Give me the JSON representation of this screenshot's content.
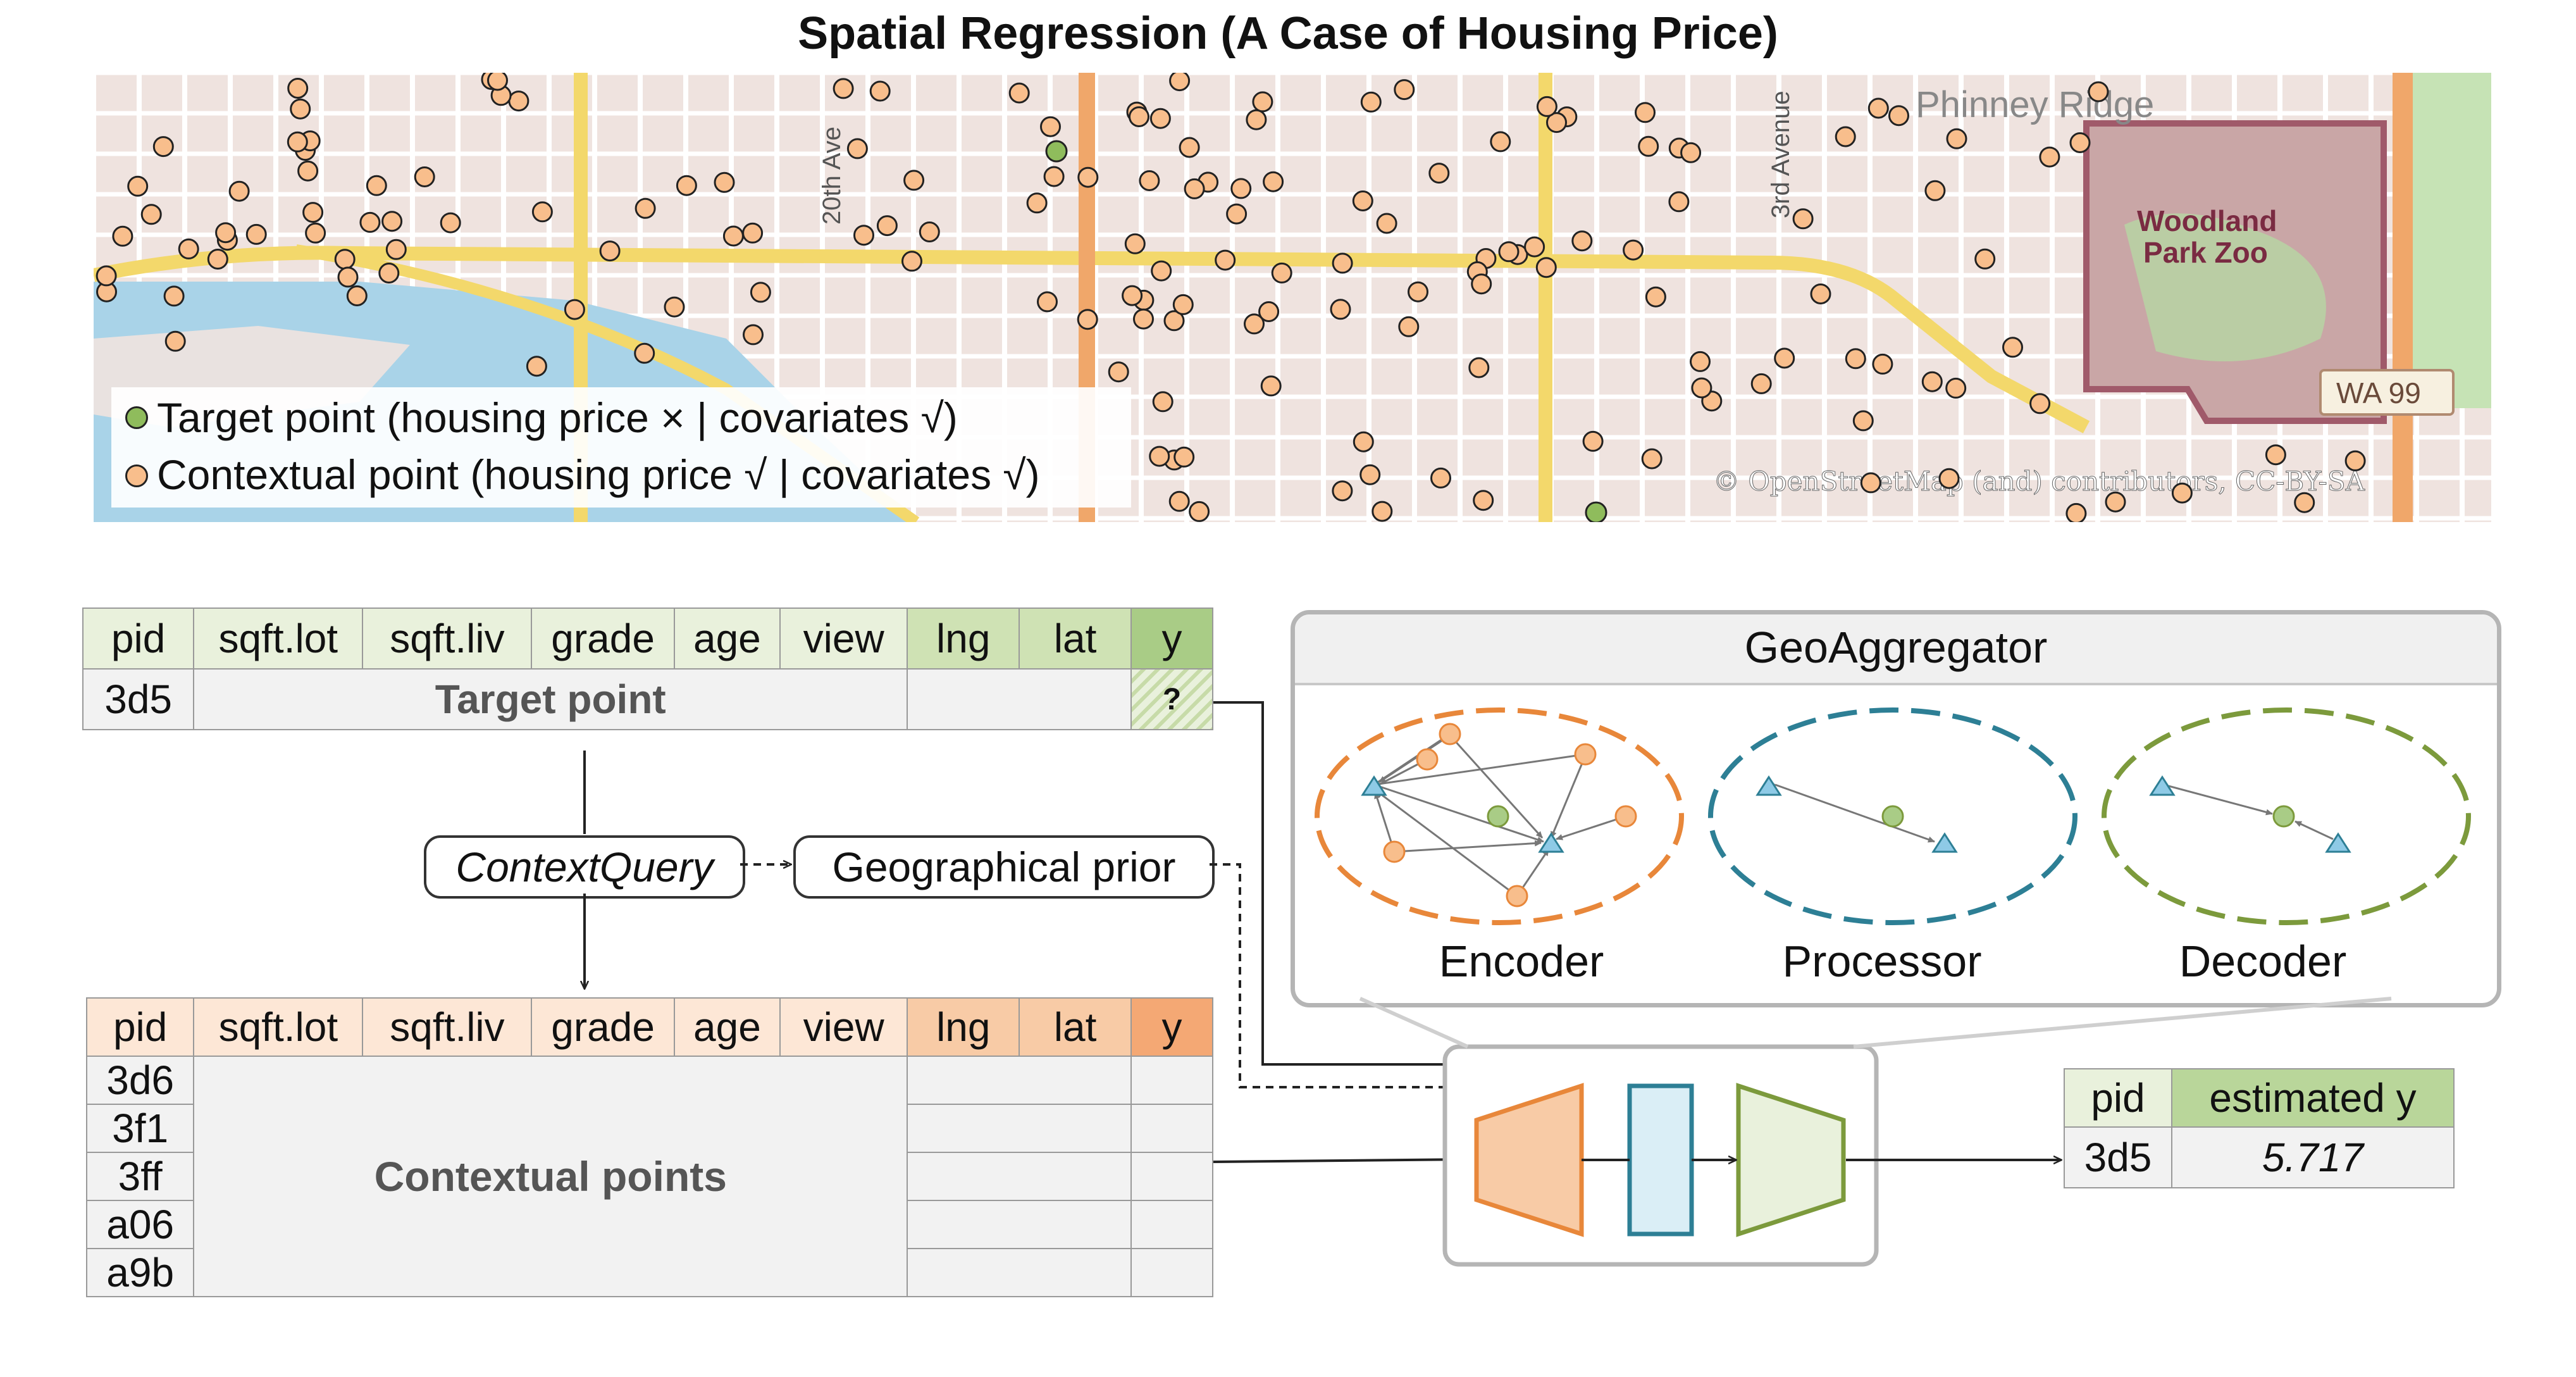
{
  "title": "Spatial Regression (A Case of Housing Price)",
  "map": {
    "places": {
      "phinney": "Phinney Ridge",
      "woodland": "Woodland",
      "park_zoo": "Park Zoo",
      "route": "WA 99",
      "ave20": "20th Ave",
      "ave3": "3rd Avenue"
    },
    "attribution": "© OpenStreetMap (and) contributors, CC-BY-SA",
    "colors": {
      "target": "#8fbc5c",
      "contextual": "#f8be8c",
      "road_major": "#f3d86b",
      "road_arterial": "#f0a76a",
      "zoo": "#c9a6a6",
      "water": "#a9d3e8"
    }
  },
  "legend": {
    "target": "Target point (housing price × | covariates √)",
    "contextual": "Contextual point (housing price √ | covariates √)"
  },
  "target_table": {
    "headers": [
      "pid",
      "sqft.lot",
      "sqft.liv",
      "grade",
      "age",
      "view",
      "lng",
      "lat",
      "y"
    ],
    "pid": "3d5",
    "label": "Target point",
    "y_value": "?"
  },
  "context_table": {
    "headers": [
      "pid",
      "sqft.lot",
      "sqft.liv",
      "grade",
      "age",
      "view",
      "lng",
      "lat",
      "y"
    ],
    "pids": [
      "3d6",
      "3f1",
      "3ff",
      "a06",
      "a9b"
    ],
    "label": "Contextual points"
  },
  "flow": {
    "context_query": "ContextQuery",
    "geo_prior": "Geographical prior"
  },
  "geoaggregator": {
    "title": "GeoAggregator",
    "encoder": "Encoder",
    "processor": "Processor",
    "decoder": "Decoder",
    "colors": {
      "encoder": "#e8873a",
      "processor": "#2d7f95",
      "decoder": "#7c9a3c",
      "triangle": "#8ecae6"
    }
  },
  "result_table": {
    "headers": [
      "pid",
      "estimated y"
    ],
    "pid": "3d5",
    "value": "5.717"
  }
}
